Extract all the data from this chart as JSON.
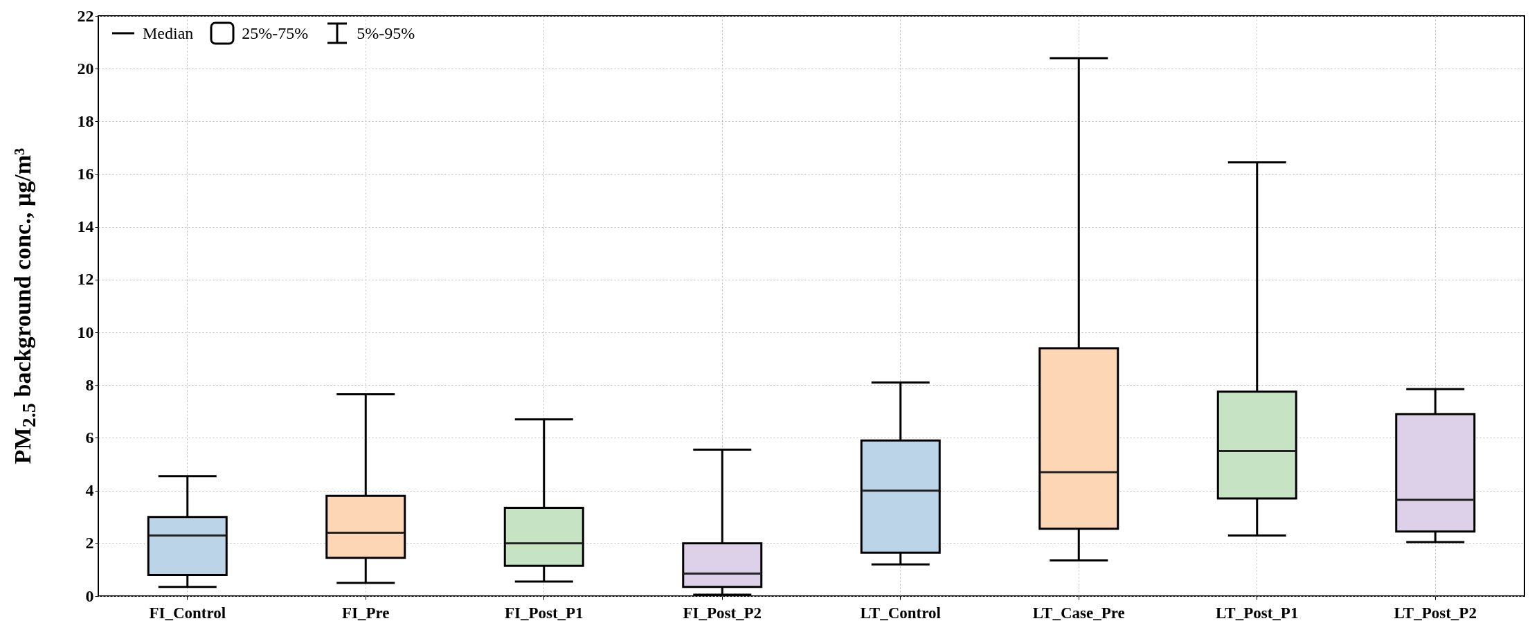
{
  "chart_data": {
    "type": "box",
    "ylabel": "PM$_{2.5}$ background conc., µg/m³",
    "categories": [
      "FI_Control",
      "FI_Pre",
      "FI_Post_P1",
      "FI_Post_P2",
      "LT_Control",
      "LT_Case_Pre",
      "LT_Post_P1",
      "LT_Post_P2"
    ],
    "boxes": [
      {
        "low": 0.35,
        "q1": 0.8,
        "median": 2.3,
        "q3": 3.0,
        "high": 4.55
      },
      {
        "low": 0.5,
        "q1": 1.45,
        "median": 2.4,
        "q3": 3.8,
        "high": 7.65
      },
      {
        "low": 0.55,
        "q1": 1.15,
        "median": 2.0,
        "q3": 3.35,
        "high": 6.7
      },
      {
        "low": 0.05,
        "q1": 0.35,
        "median": 0.85,
        "q3": 2.0,
        "high": 5.55
      },
      {
        "low": 1.2,
        "q1": 1.65,
        "median": 4.0,
        "q3": 5.9,
        "high": 8.1
      },
      {
        "low": 1.35,
        "q1": 2.55,
        "median": 4.7,
        "q3": 9.4,
        "high": 20.4
      },
      {
        "low": 2.3,
        "q1": 3.7,
        "median": 5.5,
        "q3": 7.75,
        "high": 16.45
      },
      {
        "low": 2.05,
        "q1": 2.45,
        "median": 3.65,
        "q3": 6.9,
        "high": 7.85
      }
    ],
    "colors": [
      "#bcd4e8",
      "#fdd6b6",
      "#c6e4c4",
      "#ddd1e9",
      "#bcd4e8",
      "#fdd6b6",
      "#c6e4c4",
      "#ddd1e9"
    ],
    "ylim": [
      0,
      22
    ],
    "yticks": [
      0,
      2,
      4,
      6,
      8,
      10,
      12,
      14,
      16,
      18,
      20,
      22
    ],
    "grid": true,
    "annotations": [
      "Median",
      "25%-75%",
      "5%-95%"
    ]
  }
}
